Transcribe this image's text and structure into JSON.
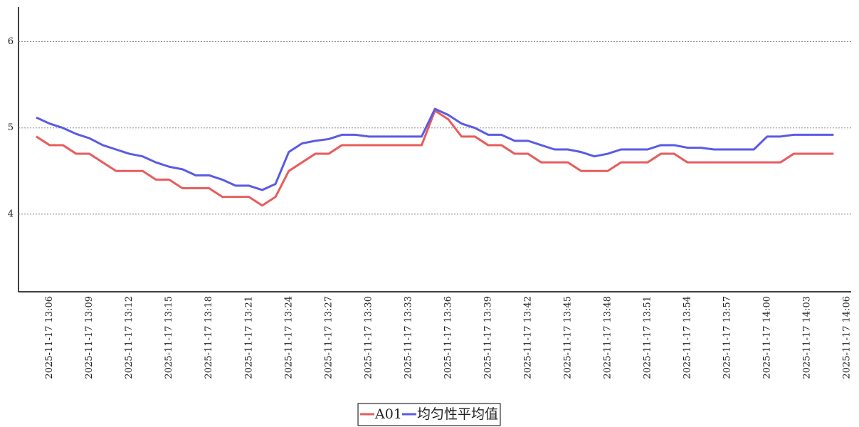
{
  "chart_data": {
    "type": "line",
    "categories": [
      null,
      "2025-11-17 13:06",
      null,
      null,
      "2025-11-17 13:09",
      null,
      null,
      "2025-11-17 13:12",
      null,
      null,
      "2025-11-17 13:15",
      null,
      null,
      "2025-11-17 13:18",
      null,
      null,
      "2025-11-17 13:21",
      null,
      null,
      "2025-11-17 13:24",
      null,
      null,
      "2025-11-17 13:27",
      null,
      null,
      "2025-11-17 13:30",
      null,
      null,
      "2025-11-17 13:33",
      null,
      null,
      "2025-11-17 13:36",
      null,
      null,
      "2025-11-17 13:39",
      null,
      null,
      "2025-11-17 13:42",
      null,
      null,
      "2025-11-17 13:45",
      null,
      null,
      "2025-11-17 13:48",
      null,
      null,
      "2025-11-17 13:51",
      null,
      null,
      "2025-11-17 13:54",
      null,
      null,
      "2025-11-17 13:57",
      null,
      null,
      "2025-11-17 14:00",
      null,
      null,
      "2025-11-17 14:03",
      null,
      null,
      "2025-11-17 14:06"
    ],
    "series": [
      {
        "name": "A01",
        "color": "#e85c5c",
        "values": [
          4.9,
          4.8,
          4.8,
          4.7,
          4.7,
          4.6,
          4.5,
          4.5,
          4.5,
          4.4,
          4.4,
          4.3,
          4.3,
          4.3,
          4.2,
          4.2,
          4.2,
          4.1,
          4.2,
          4.5,
          4.6,
          4.7,
          4.7,
          4.8,
          4.8,
          4.8,
          4.8,
          4.8,
          4.8,
          4.8,
          5.2,
          5.1,
          4.9,
          4.9,
          4.8,
          4.8,
          4.7,
          4.7,
          4.6,
          4.6,
          4.6,
          4.5,
          4.5,
          4.5,
          4.6,
          4.6,
          4.6,
          4.7,
          4.7,
          4.6,
          4.6,
          4.6,
          4.6,
          4.6,
          4.6,
          4.6,
          4.6,
          4.7,
          4.7,
          4.7,
          4.7,
          null
        ]
      },
      {
        "name": "均匀性平均值",
        "color": "#5a5ae6",
        "values": [
          5.12,
          5.05,
          5.0,
          4.93,
          4.88,
          4.8,
          4.75,
          4.7,
          4.67,
          4.6,
          4.55,
          4.52,
          4.45,
          4.45,
          4.4,
          4.33,
          4.33,
          4.28,
          4.35,
          4.72,
          4.82,
          4.85,
          4.87,
          4.92,
          4.92,
          4.9,
          4.9,
          4.9,
          4.9,
          4.9,
          5.22,
          5.15,
          5.05,
          5.0,
          4.92,
          4.92,
          4.85,
          4.85,
          4.8,
          4.75,
          4.75,
          4.72,
          4.67,
          4.7,
          4.75,
          4.75,
          4.75,
          4.8,
          4.8,
          4.77,
          4.77,
          4.75,
          4.75,
          4.75,
          4.75,
          4.9,
          4.9,
          4.92,
          4.92,
          4.92,
          4.92,
          null
        ]
      }
    ],
    "ylim": [
      3.1,
      6.4
    ],
    "yticks": [
      4,
      5,
      6
    ],
    "grid": true,
    "legend": "bottom"
  }
}
